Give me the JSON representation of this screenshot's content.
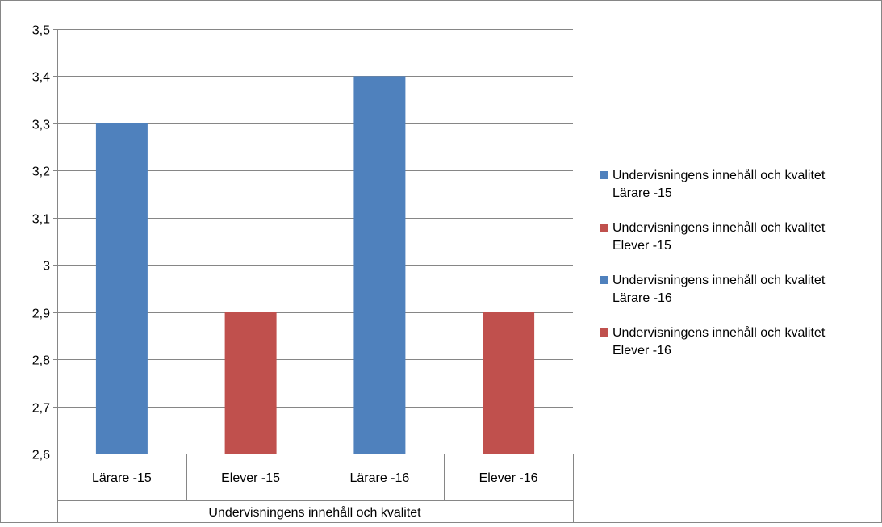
{
  "chart_data": {
    "type": "bar",
    "categories": [
      "Lärare -15",
      "Elever -15",
      "Lärare -16",
      "Elever -16"
    ],
    "group_label": "Undervisningens innehåll och kvalitet",
    "values": [
      3.3,
      2.9,
      3.4,
      2.9
    ],
    "bar_colors": [
      "#4f81bd",
      "#c0504d",
      "#4f81bd",
      "#c0504d"
    ],
    "ylim": [
      2.6,
      3.5
    ],
    "y_ticks": [
      "2,6",
      "2,7",
      "2,8",
      "2,9",
      "3",
      "3,1",
      "3,2",
      "3,3",
      "3,4",
      "3,5"
    ],
    "grid": true,
    "legend_position": "right",
    "legend": [
      {
        "line1": "Undervisningens innehåll och kvalitet",
        "line2": "Lärare -15",
        "color": "#4f81bd"
      },
      {
        "line1": "Undervisningens innehåll och kvalitet",
        "line2": "Elever -15",
        "color": "#c0504d"
      },
      {
        "line1": "Undervisningens innehåll och kvalitet",
        "line2": "Lärare -16",
        "color": "#4f81bd"
      },
      {
        "line1": "Undervisningens innehåll och kvalitet",
        "line2": "Elever -16",
        "color": "#c0504d"
      }
    ]
  }
}
